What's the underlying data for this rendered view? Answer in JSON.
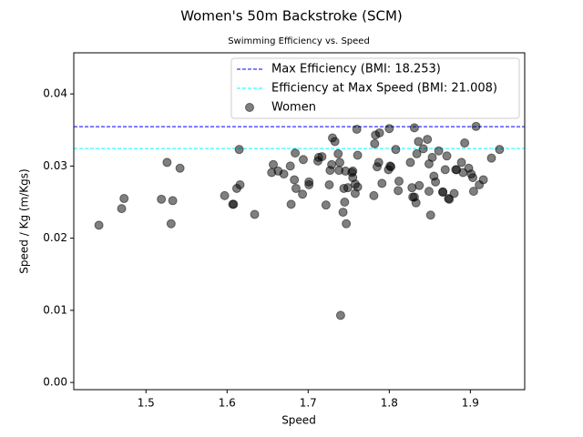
{
  "chart_data": {
    "type": "scatter",
    "title": "Women's 50m Backstroke (SCM)",
    "subtitle": "Swimming Efficiency vs. Speed",
    "x_label": "Speed",
    "y_label": "Speed / Kg (m/Kgs)",
    "xlim": [
      1.411,
      1.967
    ],
    "ylim": [
      -0.001,
      0.0457
    ],
    "xticks": [
      1.5,
      1.6,
      1.7,
      1.8,
      1.9
    ],
    "yticks": [
      {
        "value": 0,
        "label": "0.00"
      },
      0.01,
      0.02,
      0.03,
      0.04
    ],
    "legend": "upper right",
    "reference_lines": [
      {
        "name": "Max Efficiency (BMI: 18.253)",
        "color": "#0000ff",
        "value": 0.03546
      },
      {
        "name": "Efficiency at Max Speed (BMI: 21.008)",
        "color": "#00ffff",
        "value": 0.03243
      }
    ],
    "series": [
      {
        "name": "Women",
        "color": "#000000",
        "x": [
          1.442,
          1.47,
          1.473,
          1.519,
          1.526,
          1.533,
          1.531,
          1.542,
          1.597,
          1.607,
          1.608,
          1.612,
          1.615,
          1.616,
          1.634,
          1.655,
          1.657,
          1.663,
          1.67,
          1.678,
          1.679,
          1.683,
          1.684,
          1.685,
          1.693,
          1.694,
          1.701,
          1.701,
          1.712,
          1.713,
          1.717,
          1.722,
          1.726,
          1.727,
          1.729,
          1.73,
          1.733,
          1.737,
          1.738,
          1.739,
          1.74,
          1.743,
          1.744,
          1.745,
          1.746,
          1.747,
          1.749,
          1.754,
          1.755,
          1.755,
          1.758,
          1.758,
          1.76,
          1.761,
          1.761,
          1.781,
          1.782,
          1.783,
          1.785,
          1.787,
          1.788,
          1.791,
          1.799,
          1.8,
          1.801,
          1.802,
          1.808,
          1.811,
          1.812,
          1.826,
          1.828,
          1.829,
          1.831,
          1.831,
          1.833,
          1.834,
          1.836,
          1.837,
          1.842,
          1.847,
          1.849,
          1.849,
          1.851,
          1.853,
          1.855,
          1.857,
          1.861,
          1.866,
          1.866,
          1.869,
          1.871,
          1.873,
          1.874,
          1.88,
          1.882,
          1.883,
          1.889,
          1.891,
          1.893,
          1.898,
          1.901,
          1.903,
          1.904,
          1.907,
          1.911,
          1.916,
          1.926,
          1.936
        ],
        "values": [
          0.0218,
          0.0241,
          0.0255,
          0.0254,
          0.0305,
          0.0252,
          0.022,
          0.0297,
          0.0259,
          0.0247,
          0.0247,
          0.0269,
          0.0323,
          0.0274,
          0.0233,
          0.0291,
          0.0302,
          0.0293,
          0.0289,
          0.03,
          0.0247,
          0.0281,
          0.0318,
          0.0269,
          0.0261,
          0.0309,
          0.0278,
          0.0274,
          0.0307,
          0.0312,
          0.0313,
          0.0246,
          0.0274,
          0.0294,
          0.0302,
          0.0339,
          0.0334,
          0.0317,
          0.0294,
          0.0305,
          0.0093,
          0.0236,
          0.0269,
          0.025,
          0.0293,
          0.022,
          0.027,
          0.0291,
          0.0293,
          0.0284,
          0.0262,
          0.0275,
          0.0351,
          0.0315,
          0.0271,
          0.0259,
          0.0331,
          0.0343,
          0.0299,
          0.0305,
          0.0346,
          0.0276,
          0.0295,
          0.0352,
          0.03,
          0.0299,
          0.0323,
          0.0266,
          0.0279,
          0.0305,
          0.027,
          0.0257,
          0.0257,
          0.0353,
          0.0249,
          0.0317,
          0.0334,
          0.0273,
          0.0324,
          0.0337,
          0.0303,
          0.0265,
          0.0232,
          0.0312,
          0.0286,
          0.0278,
          0.0321,
          0.0264,
          0.0264,
          0.0295,
          0.0314,
          0.0255,
          0.0254,
          0.0262,
          0.0295,
          0.0295,
          0.0305,
          0.0291,
          0.0332,
          0.0297,
          0.0289,
          0.0284,
          0.0265,
          0.0355,
          0.0274,
          0.0281,
          0.0311,
          0.0323
        ]
      }
    ]
  }
}
